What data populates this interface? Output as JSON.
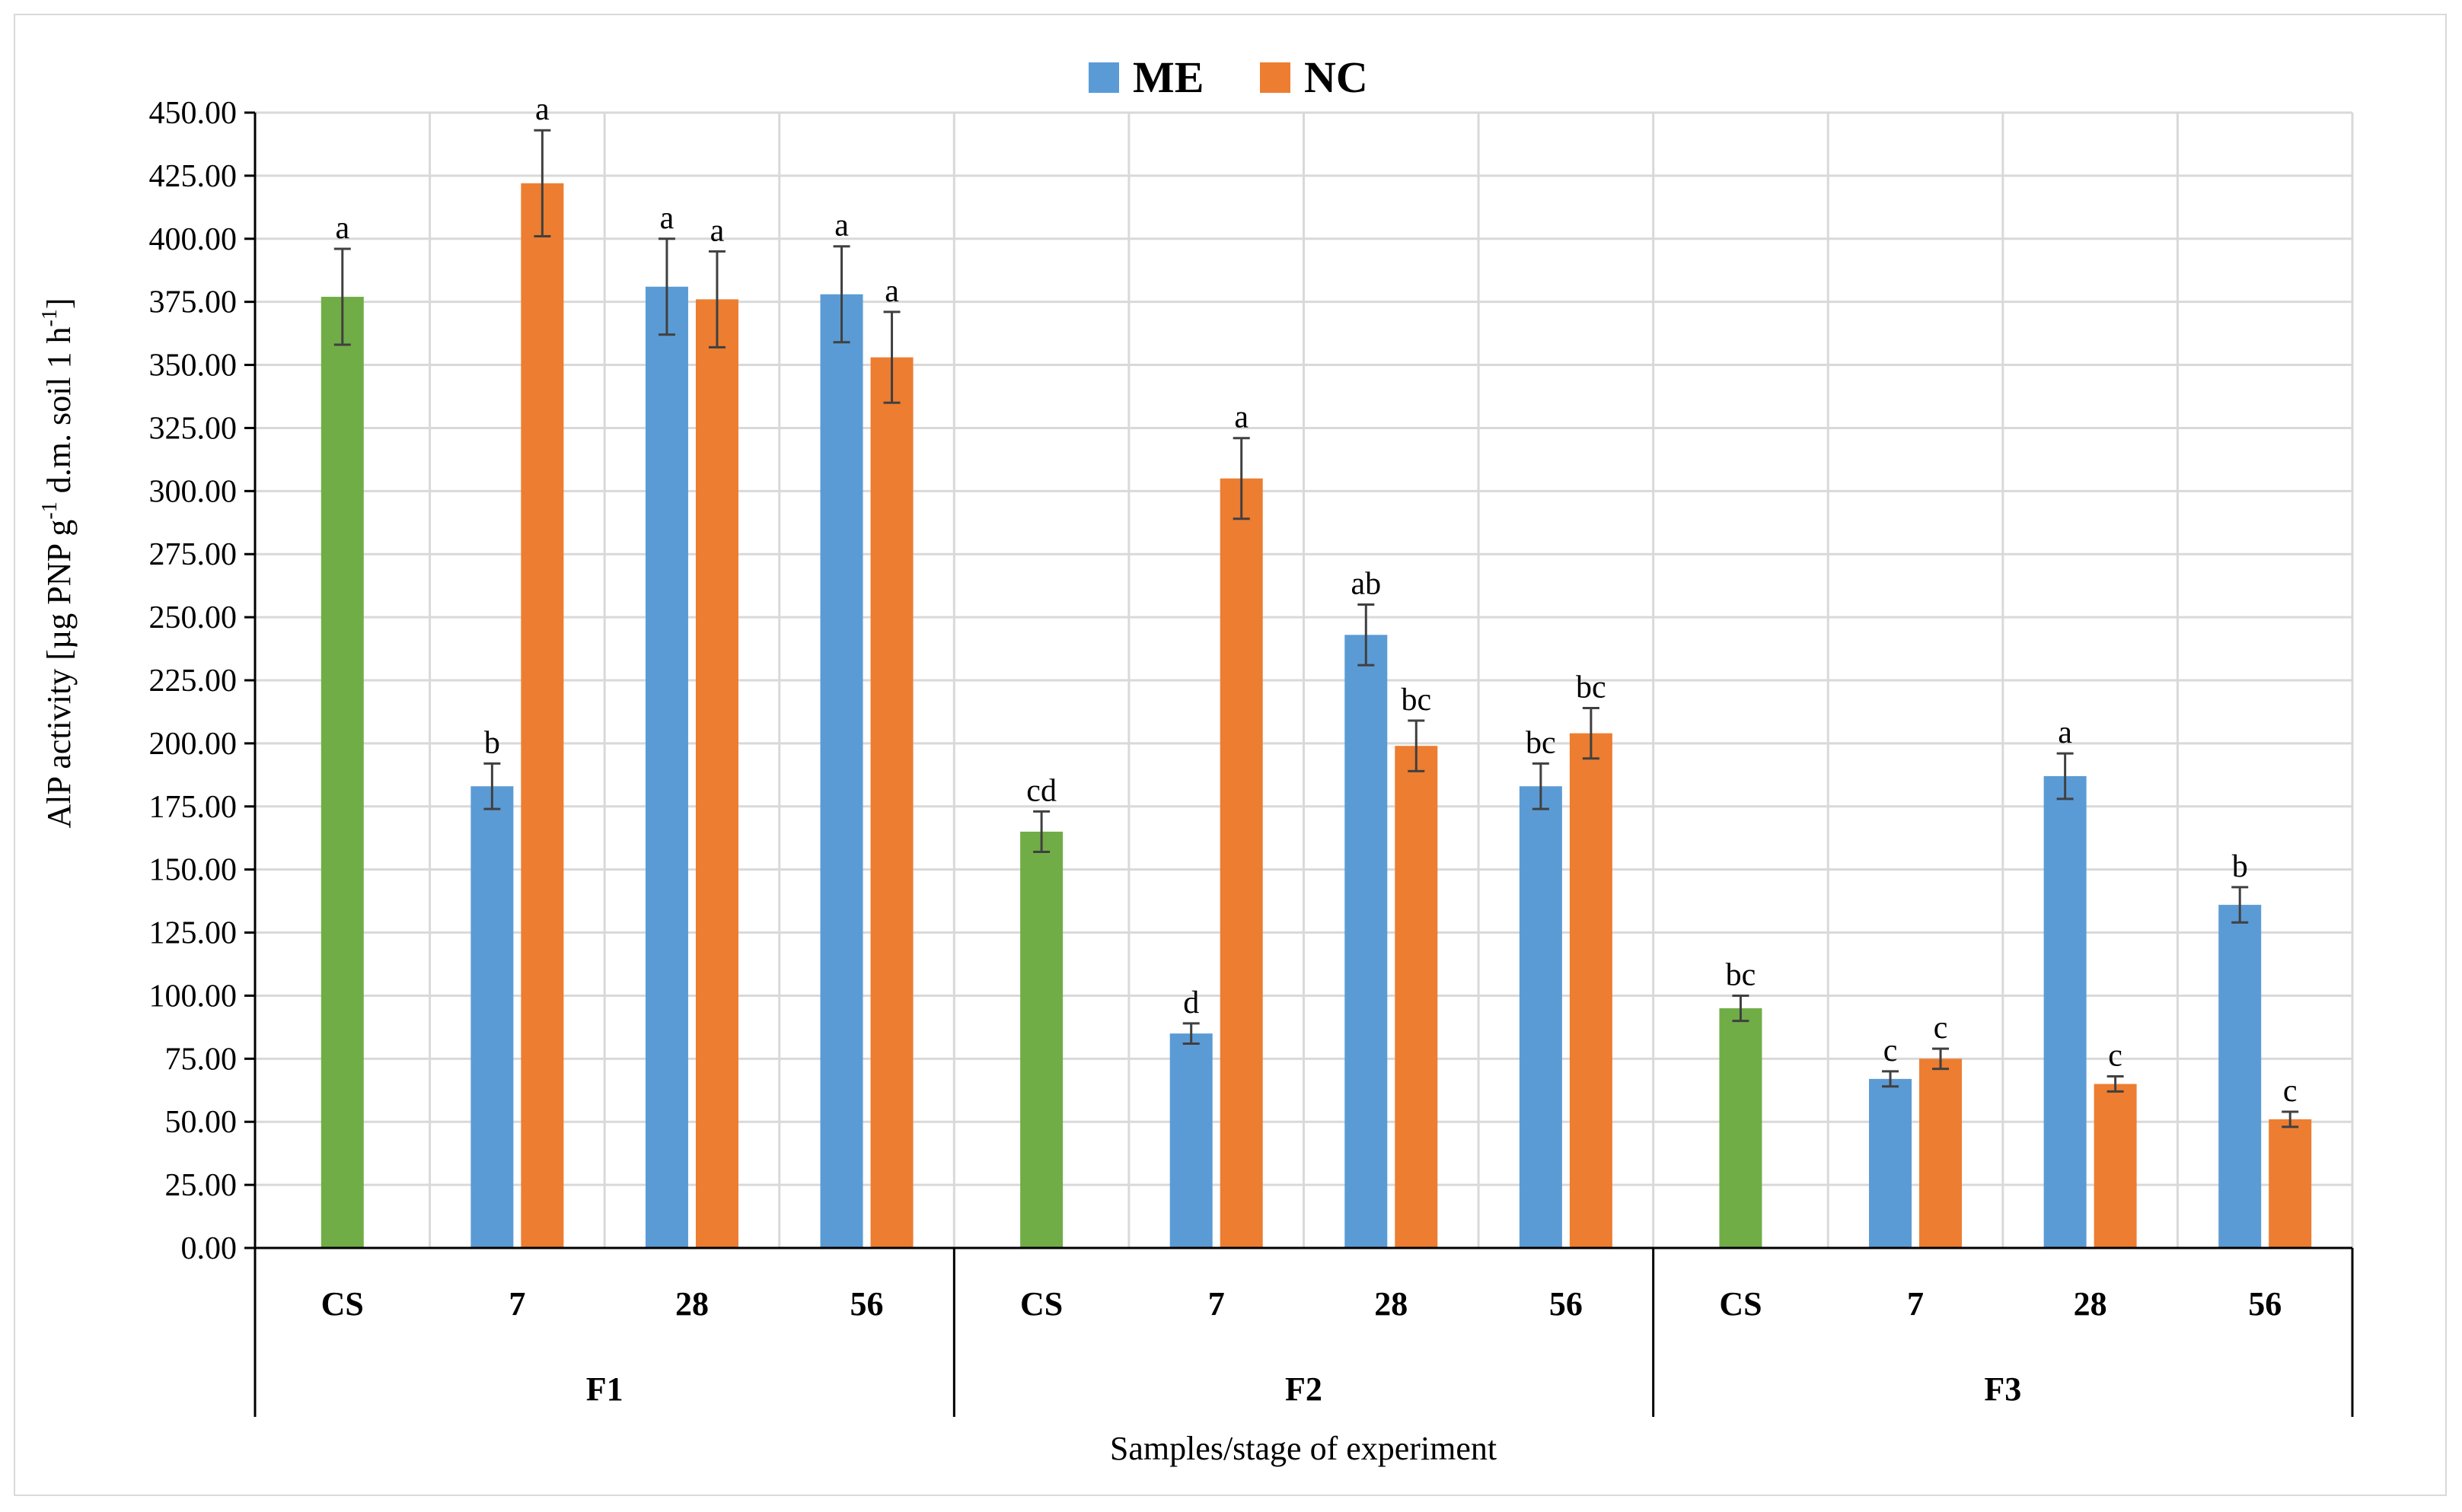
{
  "chart_data": {
    "type": "bar",
    "xlabel": "Samples/stage of experiment",
    "ylabel_main": "AlP activity [µg PNP g",
    "ylabel_sup1": "-1",
    "ylabel_mid": " d.m. soil 1 h",
    "ylabel_sup2": "-1",
    "ylabel_end": "]",
    "ylim": [
      0,
      450
    ],
    "y_step": 25,
    "y_ticks": [
      "0.00",
      "25.00",
      "50.00",
      "75.00",
      "100.00",
      "125.00",
      "150.00",
      "175.00",
      "200.00",
      "225.00",
      "250.00",
      "275.00",
      "300.00",
      "325.00",
      "350.00",
      "375.00",
      "400.00",
      "425.00",
      "450.00"
    ],
    "legend": [
      {
        "name": "ME",
        "color": "#5b9bd5"
      },
      {
        "name": "NC",
        "color": "#ed7d31"
      }
    ],
    "cs_color": "#70ad47",
    "groups": [
      {
        "name": "F1",
        "categories": [
          {
            "label": "CS",
            "bars": [
              {
                "series": "CS",
                "value": 377,
                "error": 19,
                "letter": "a"
              }
            ]
          },
          {
            "label": "7",
            "bars": [
              {
                "series": "ME",
                "value": 183,
                "error": 9,
                "letter": "b"
              },
              {
                "series": "NC",
                "value": 422,
                "error": 21,
                "letter": "a"
              }
            ]
          },
          {
            "label": "28",
            "bars": [
              {
                "series": "ME",
                "value": 381,
                "error": 19,
                "letter": "a"
              },
              {
                "series": "NC",
                "value": 376,
                "error": 19,
                "letter": "a"
              }
            ]
          },
          {
            "label": "56",
            "bars": [
              {
                "series": "ME",
                "value": 378,
                "error": 19,
                "letter": "a"
              },
              {
                "series": "NC",
                "value": 353,
                "error": 18,
                "letter": "a"
              }
            ]
          }
        ]
      },
      {
        "name": "F2",
        "categories": [
          {
            "label": "CS",
            "bars": [
              {
                "series": "CS",
                "value": 165,
                "error": 8,
                "letter": "cd"
              }
            ]
          },
          {
            "label": "7",
            "bars": [
              {
                "series": "ME",
                "value": 85,
                "error": 4,
                "letter": "d"
              },
              {
                "series": "NC",
                "value": 305,
                "error": 16,
                "letter": "a"
              }
            ]
          },
          {
            "label": "28",
            "bars": [
              {
                "series": "ME",
                "value": 243,
                "error": 12,
                "letter": "ab"
              },
              {
                "series": "NC",
                "value": 199,
                "error": 10,
                "letter": "bc"
              }
            ]
          },
          {
            "label": "56",
            "bars": [
              {
                "series": "ME",
                "value": 183,
                "error": 9,
                "letter": "bc"
              },
              {
                "series": "NC",
                "value": 204,
                "error": 10,
                "letter": "bc"
              }
            ]
          }
        ]
      },
      {
        "name": "F3",
        "categories": [
          {
            "label": "CS",
            "bars": [
              {
                "series": "CS",
                "value": 95,
                "error": 5,
                "letter": "bc"
              }
            ]
          },
          {
            "label": "7",
            "bars": [
              {
                "series": "ME",
                "value": 67,
                "error": 3,
                "letter": "c"
              },
              {
                "series": "NC",
                "value": 75,
                "error": 4,
                "letter": "c"
              }
            ]
          },
          {
            "label": "28",
            "bars": [
              {
                "series": "ME",
                "value": 187,
                "error": 9,
                "letter": "a"
              },
              {
                "series": "NC",
                "value": 65,
                "error": 3,
                "letter": "c"
              }
            ]
          },
          {
            "label": "56",
            "bars": [
              {
                "series": "ME",
                "value": 136,
                "error": 7,
                "letter": "b"
              },
              {
                "series": "NC",
                "value": 51,
                "error": 3,
                "letter": "c"
              }
            ]
          }
        ]
      }
    ]
  }
}
